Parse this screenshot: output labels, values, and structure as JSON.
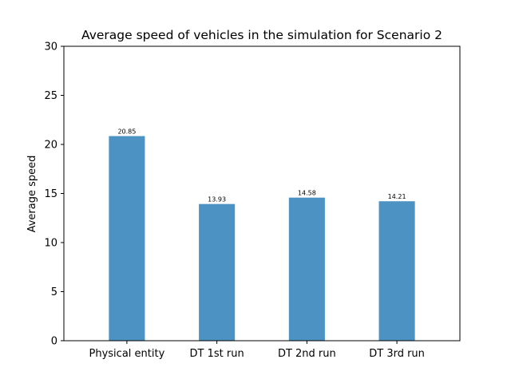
{
  "chart_data": {
    "type": "bar",
    "title": "Average speed of vehicles in the simulation for Scenario 2",
    "xlabel": "",
    "ylabel": "Average speed",
    "categories": [
      "Physical entity",
      "DT 1st run",
      "DT 2nd run",
      "DT 3rd run"
    ],
    "values": [
      20.85,
      13.93,
      14.58,
      14.21
    ],
    "value_labels": [
      "20.85",
      "13.93",
      "14.58",
      "14.21"
    ],
    "ylim": [
      0,
      30
    ],
    "yticks": [
      0,
      5,
      10,
      15,
      20,
      25,
      30
    ],
    "grid": false,
    "bar_color": "#4c92c3"
  }
}
